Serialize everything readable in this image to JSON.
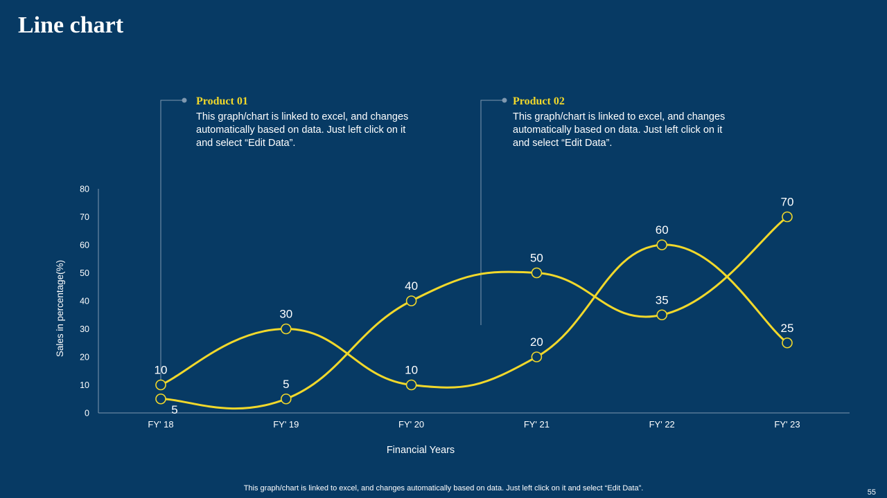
{
  "title": "Line chart",
  "callouts": [
    {
      "heading": "Product 01",
      "body": "This graph/chart is linked to excel, and changes automatically based on data. Just left click on it and select “Edit Data”."
    },
    {
      "heading": "Product 02",
      "body": "This graph/chart is linked to excel, and changes automatically based on data. Just left click on it and select “Edit Data”."
    }
  ],
  "footnote": "This graph/chart is linked to excel,  and changes automatically based on data. Just left click on it and select “Edit Data”.",
  "page_number": "55",
  "colors": {
    "background": "#073a64",
    "series": "#f1d82b",
    "axis": "#7f98b0",
    "text": "#ffffff",
    "heading_accent": "#f1d82b"
  },
  "chart_data": {
    "type": "line",
    "categories": [
      "FY' 18",
      "FY' 19",
      "FY' 20",
      "FY' 21",
      "FY' 22",
      "FY' 23"
    ],
    "series": [
      {
        "name": "Product 01",
        "values": [
          10,
          30,
          10,
          20,
          60,
          25
        ]
      },
      {
        "name": "Product 02",
        "values": [
          5,
          5,
          40,
          50,
          35,
          70
        ]
      }
    ],
    "xlabel": "Financial Years",
    "ylabel": "Sales in percentage(%)",
    "ylim": [
      0,
      80
    ],
    "yticks": [
      0,
      10,
      20,
      30,
      40,
      50,
      60,
      70,
      80
    ],
    "smooth": true,
    "markers": "circle",
    "data_labels": true
  }
}
